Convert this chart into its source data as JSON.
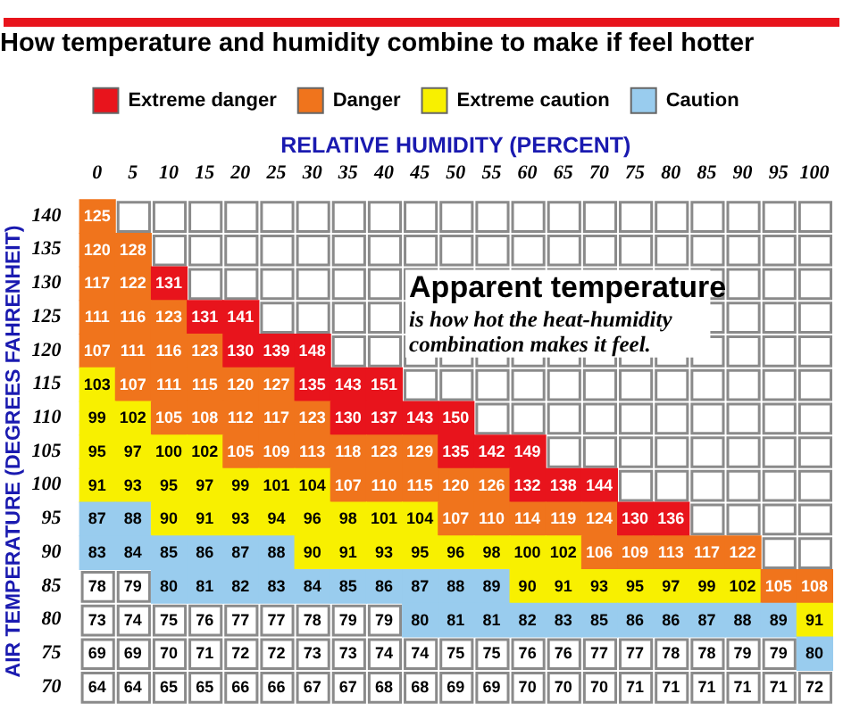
{
  "chart_data": {
    "type": "heatmap",
    "title": "How temperature and humidity combine to make if feel hotter",
    "xlabel": "RELATIVE HUMIDITY (PERCENT)",
    "ylabel": "AIR TEMPERATURE (DEGREES FAHRENHEIT)",
    "legend": "top",
    "series": [
      {
        "name": "Extreme danger",
        "color": "#e8141c",
        "values": [
          null,
          null,
          null,
          null,
          null,
          null,
          null,
          null,
          null,
          null,
          null,
          null,
          null,
          null,
          null,
          null,
          null,
          null,
          null,
          null,
          null
        ]
      },
      {
        "name": "Danger",
        "color": "#f0741c",
        "values": [
          null,
          null,
          null,
          null,
          null,
          null,
          null,
          null,
          null,
          null,
          null,
          null,
          null,
          null,
          null,
          null,
          null,
          null,
          null,
          null,
          null
        ]
      },
      {
        "name": "Extreme caution",
        "color": "#f8f000",
        "values": [
          null,
          null,
          null,
          null,
          null,
          null,
          null,
          null,
          null,
          null,
          null,
          null,
          null,
          null,
          null,
          null,
          null,
          null,
          null,
          null,
          null
        ]
      },
      {
        "name": "Caution",
        "color": "#99ccee",
        "values": [
          null,
          null,
          null,
          null,
          null,
          null,
          null,
          null,
          null,
          null,
          null,
          null,
          null,
          null,
          null,
          null,
          null,
          null,
          null,
          null,
          null
        ]
      }
    ],
    "categories": [
      "0",
      "5",
      "10",
      "15",
      "20",
      "25",
      "30",
      "35",
      "40",
      "45",
      "50",
      "55",
      "60",
      "65",
      "70",
      "75",
      "80",
      "85",
      "90",
      "95",
      "100"
    ],
    "y_categories": [
      "140",
      "135",
      "130",
      "125",
      "120",
      "115",
      "110",
      "105",
      "100",
      "95",
      "90",
      "85",
      "80",
      "75",
      "70"
    ],
    "cells": [
      [
        125,
        null,
        null,
        null,
        null,
        null,
        null,
        null,
        null,
        null,
        null,
        null,
        null,
        null,
        null,
        null,
        null,
        null,
        null,
        null,
        null
      ],
      [
        120,
        128,
        null,
        null,
        null,
        null,
        null,
        null,
        null,
        null,
        null,
        null,
        null,
        null,
        null,
        null,
        null,
        null,
        null,
        null,
        null
      ],
      [
        117,
        122,
        131,
        null,
        null,
        null,
        null,
        null,
        null,
        null,
        null,
        null,
        null,
        null,
        null,
        null,
        null,
        null,
        null,
        null,
        null
      ],
      [
        111,
        116,
        123,
        131,
        141,
        null,
        null,
        null,
        null,
        null,
        null,
        null,
        null,
        null,
        null,
        null,
        null,
        null,
        null,
        null,
        null
      ],
      [
        107,
        111,
        116,
        123,
        130,
        139,
        148,
        null,
        null,
        null,
        null,
        null,
        null,
        null,
        null,
        null,
        null,
        null,
        null,
        null,
        null
      ],
      [
        103,
        107,
        111,
        115,
        120,
        127,
        135,
        143,
        151,
        null,
        null,
        null,
        null,
        null,
        null,
        null,
        null,
        null,
        null,
        null,
        null
      ],
      [
        99,
        102,
        105,
        108,
        112,
        117,
        123,
        130,
        137,
        143,
        150,
        null,
        null,
        null,
        null,
        null,
        null,
        null,
        null,
        null,
        null
      ],
      [
        95,
        97,
        100,
        102,
        105,
        109,
        113,
        118,
        123,
        129,
        135,
        142,
        149,
        null,
        null,
        null,
        null,
        null,
        null,
        null,
        null
      ],
      [
        91,
        93,
        95,
        97,
        99,
        101,
        104,
        107,
        110,
        115,
        120,
        126,
        132,
        138,
        144,
        null,
        null,
        null,
        null,
        null,
        null
      ],
      [
        87,
        88,
        90,
        91,
        93,
        94,
        96,
        98,
        101,
        104,
        107,
        110,
        114,
        119,
        124,
        130,
        136,
        null,
        null,
        null,
        null
      ],
      [
        83,
        84,
        85,
        86,
        87,
        88,
        90,
        91,
        93,
        95,
        96,
        98,
        100,
        102,
        106,
        109,
        113,
        117,
        122,
        null,
        null
      ],
      [
        78,
        79,
        80,
        81,
        82,
        83,
        84,
        85,
        86,
        87,
        88,
        89,
        90,
        91,
        93,
        95,
        97,
        99,
        102,
        105,
        108
      ],
      [
        73,
        74,
        75,
        76,
        77,
        77,
        78,
        79,
        79,
        80,
        81,
        81,
        82,
        83,
        85,
        86,
        86,
        87,
        88,
        89,
        91
      ],
      [
        69,
        69,
        70,
        71,
        72,
        72,
        73,
        73,
        74,
        74,
        75,
        75,
        76,
        76,
        77,
        77,
        78,
        78,
        79,
        79,
        80
      ],
      [
        64,
        64,
        65,
        65,
        66,
        66,
        67,
        67,
        68,
        68,
        69,
        69,
        70,
        70,
        70,
        71,
        71,
        71,
        71,
        71,
        72
      ]
    ],
    "colors": [
      [
        "#f0741c",
        null,
        null,
        null,
        null,
        null,
        null,
        null,
        null,
        null,
        null,
        null,
        null,
        null,
        null,
        null,
        null,
        null,
        null,
        null,
        null
      ],
      [
        "#f0741c",
        "#f0741c",
        null,
        null,
        null,
        null,
        null,
        null,
        null,
        null,
        null,
        null,
        null,
        null,
        null,
        null,
        null,
        null,
        null,
        null,
        null
      ],
      [
        "#f0741c",
        "#f0741c",
        "#e8141c",
        null,
        null,
        null,
        null,
        null,
        null,
        null,
        null,
        null,
        null,
        null,
        null,
        null,
        null,
        null,
        null,
        null,
        null
      ],
      [
        "#f0741c",
        "#f0741c",
        "#f0741c",
        "#e8141c",
        "#e8141c",
        null,
        null,
        null,
        null,
        null,
        null,
        null,
        null,
        null,
        null,
        null,
        null,
        null,
        null,
        null,
        null
      ],
      [
        "#f0741c",
        "#f0741c",
        "#f0741c",
        "#f0741c",
        "#e8141c",
        "#e8141c",
        "#e8141c",
        null,
        null,
        null,
        null,
        null,
        null,
        null,
        null,
        null,
        null,
        null,
        null,
        null,
        null
      ],
      [
        "#f8f000",
        "#f0741c",
        "#f0741c",
        "#f0741c",
        "#f0741c",
        "#f0741c",
        "#e8141c",
        "#e8141c",
        "#e8141c",
        null,
        null,
        null,
        null,
        null,
        null,
        null,
        null,
        null,
        null,
        null,
        null
      ],
      [
        "#f8f000",
        "#f8f000",
        "#f0741c",
        "#f0741c",
        "#f0741c",
        "#f0741c",
        "#f0741c",
        "#e8141c",
        "#e8141c",
        "#e8141c",
        "#e8141c",
        null,
        null,
        null,
        null,
        null,
        null,
        null,
        null,
        null,
        null
      ],
      [
        "#f8f000",
        "#f8f000",
        "#f8f000",
        "#f8f000",
        "#f0741c",
        "#f0741c",
        "#f0741c",
        "#f0741c",
        "#f0741c",
        "#f0741c",
        "#e8141c",
        "#e8141c",
        "#e8141c",
        null,
        null,
        null,
        null,
        null,
        null,
        null,
        null
      ],
      [
        "#f8f000",
        "#f8f000",
        "#f8f000",
        "#f8f000",
        "#f8f000",
        "#f8f000",
        "#f8f000",
        "#f0741c",
        "#f0741c",
        "#f0741c",
        "#f0741c",
        "#f0741c",
        "#e8141c",
        "#e8141c",
        "#e8141c",
        null,
        null,
        null,
        null,
        null,
        null
      ],
      [
        "#99ccee",
        "#99ccee",
        "#f8f000",
        "#f8f000",
        "#f8f000",
        "#f8f000",
        "#f8f000",
        "#f8f000",
        "#f8f000",
        "#f8f000",
        "#f0741c",
        "#f0741c",
        "#f0741c",
        "#f0741c",
        "#f0741c",
        "#e8141c",
        "#e8141c",
        null,
        null,
        null,
        null
      ],
      [
        "#99ccee",
        "#99ccee",
        "#99ccee",
        "#99ccee",
        "#99ccee",
        "#99ccee",
        "#f8f000",
        "#f8f000",
        "#f8f000",
        "#f8f000",
        "#f8f000",
        "#f8f000",
        "#f8f000",
        "#f8f000",
        "#f0741c",
        "#f0741c",
        "#f0741c",
        "#f0741c",
        "#f0741c",
        null,
        null
      ],
      [
        null,
        null,
        "#99ccee",
        "#99ccee",
        "#99ccee",
        "#99ccee",
        "#99ccee",
        "#99ccee",
        "#99ccee",
        "#99ccee",
        "#99ccee",
        "#99ccee",
        "#f8f000",
        "#f8f000",
        "#f8f000",
        "#f8f000",
        "#f8f000",
        "#f8f000",
        "#f8f000",
        "#f0741c",
        "#f0741c"
      ],
      [
        null,
        null,
        null,
        null,
        null,
        null,
        null,
        null,
        null,
        "#99ccee",
        "#99ccee",
        "#99ccee",
        "#99ccee",
        "#99ccee",
        "#99ccee",
        "#99ccee",
        "#99ccee",
        "#99ccee",
        "#99ccee",
        "#99ccee",
        "#f8f000"
      ],
      [
        null,
        null,
        null,
        null,
        null,
        null,
        null,
        null,
        null,
        null,
        null,
        null,
        null,
        null,
        null,
        null,
        null,
        null,
        null,
        null,
        "#99ccee"
      ],
      [
        null,
        null,
        null,
        null,
        null,
        null,
        null,
        null,
        null,
        null,
        null,
        null,
        null,
        null,
        null,
        null,
        null,
        null,
        null,
        null,
        null
      ]
    ],
    "data_labels": true,
    "annotations": [
      "Apparent temperature",
      "is how hot the heat-humidity combination makes it feel."
    ]
  }
}
